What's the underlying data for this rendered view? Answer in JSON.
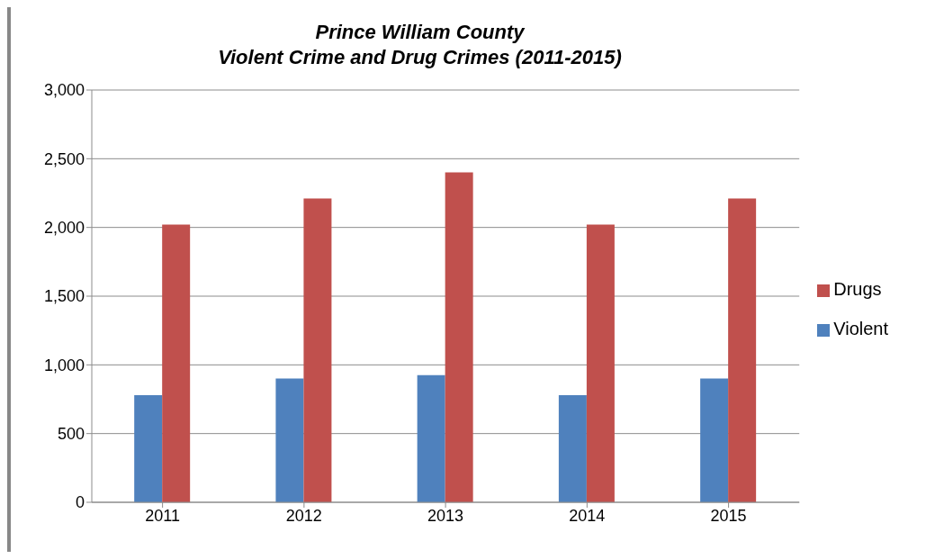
{
  "chart_data": {
    "type": "bar",
    "title": "Prince William County\nViolent Crime and Drug Crimes (2011-2015)",
    "categories": [
      "2011",
      "2012",
      "2013",
      "2014",
      "2015"
    ],
    "series": [
      {
        "name": "Violent",
        "color": "#4f81bd",
        "values": [
          780,
          900,
          925,
          780,
          900
        ]
      },
      {
        "name": "Drugs",
        "color": "#c0504d",
        "values": [
          2020,
          2210,
          2400,
          2020,
          2210
        ]
      }
    ],
    "ylim": [
      0,
      3000
    ],
    "yticks": [
      {
        "value": 0,
        "label": "0"
      },
      {
        "value": 500,
        "label": "500"
      },
      {
        "value": 1000,
        "label": "1,000"
      },
      {
        "value": 1500,
        "label": "1,500"
      },
      {
        "value": 2000,
        "label": "2,000"
      },
      {
        "value": 2500,
        "label": "2,500"
      },
      {
        "value": 3000,
        "label": "3,000"
      }
    ],
    "grid": "y",
    "legend": "right"
  }
}
